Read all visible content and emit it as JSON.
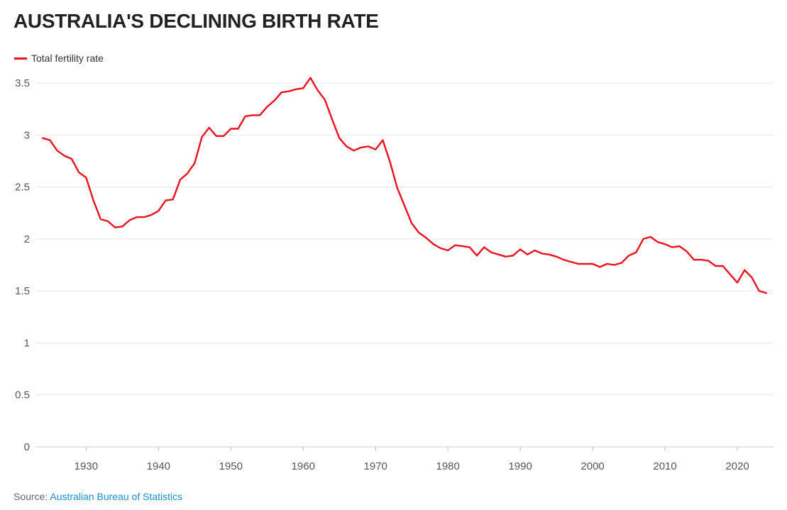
{
  "title": "AUSTRALIA'S DECLINING BIRTH RATE",
  "source": {
    "label": "Source:",
    "link_text": "Australian Bureau of Statistics"
  },
  "colors": {
    "series": "#e8131f",
    "grid": "#e6e6e6",
    "link": "#1a8fcf"
  },
  "chart_data": {
    "type": "line",
    "title": "AUSTRALIA'S DECLINING BIRTH RATE",
    "xlabel": "",
    "ylabel": "",
    "xlim": [
      1923,
      2025
    ],
    "ylim": [
      0,
      3.5
    ],
    "xticks": [
      1930,
      1940,
      1950,
      1960,
      1970,
      1980,
      1990,
      2000,
      2010,
      2020
    ],
    "yticks": [
      0,
      0.5,
      1,
      1.5,
      2,
      2.5,
      3,
      3.5
    ],
    "ytick_labels": [
      "0",
      "0.5",
      "1",
      "1.5",
      "2",
      "2.5",
      "3",
      "3.5"
    ],
    "grid": true,
    "legend_position": "top-left",
    "series": [
      {
        "name": "Total fertility rate",
        "x": [
          1924,
          1925,
          1926,
          1927,
          1928,
          1929,
          1930,
          1931,
          1932,
          1933,
          1934,
          1935,
          1936,
          1937,
          1938,
          1939,
          1940,
          1941,
          1942,
          1943,
          1944,
          1945,
          1946,
          1947,
          1948,
          1949,
          1950,
          1951,
          1952,
          1953,
          1954,
          1955,
          1956,
          1957,
          1958,
          1959,
          1960,
          1961,
          1962,
          1963,
          1964,
          1965,
          1966,
          1967,
          1968,
          1969,
          1970,
          1971,
          1972,
          1973,
          1974,
          1975,
          1976,
          1977,
          1978,
          1979,
          1980,
          1981,
          1982,
          1983,
          1984,
          1985,
          1986,
          1987,
          1988,
          1989,
          1990,
          1991,
          1992,
          1993,
          1994,
          1995,
          1996,
          1997,
          1998,
          1999,
          2000,
          2001,
          2002,
          2003,
          2004,
          2005,
          2006,
          2007,
          2008,
          2009,
          2010,
          2011,
          2012,
          2013,
          2014,
          2015,
          2016,
          2017,
          2018,
          2019,
          2020,
          2021,
          2022,
          2023,
          2024
        ],
        "values": [
          2.97,
          2.95,
          2.85,
          2.8,
          2.77,
          2.64,
          2.59,
          2.37,
          2.19,
          2.17,
          2.11,
          2.12,
          2.18,
          2.21,
          2.21,
          2.23,
          2.27,
          2.37,
          2.38,
          2.57,
          2.63,
          2.73,
          2.98,
          3.07,
          2.99,
          2.99,
          3.06,
          3.06,
          3.18,
          3.19,
          3.19,
          3.27,
          3.33,
          3.41,
          3.42,
          3.44,
          3.45,
          3.55,
          3.43,
          3.34,
          3.15,
          2.97,
          2.89,
          2.85,
          2.88,
          2.89,
          2.86,
          2.95,
          2.74,
          2.49,
          2.32,
          2.15,
          2.06,
          2.01,
          1.95,
          1.91,
          1.89,
          1.94,
          1.93,
          1.92,
          1.84,
          1.92,
          1.87,
          1.85,
          1.83,
          1.84,
          1.9,
          1.85,
          1.89,
          1.86,
          1.85,
          1.83,
          1.8,
          1.78,
          1.76,
          1.76,
          1.76,
          1.73,
          1.76,
          1.75,
          1.77,
          1.84,
          1.87,
          2.0,
          2.02,
          1.97,
          1.95,
          1.92,
          1.93,
          1.88,
          1.8,
          1.8,
          1.79,
          1.74,
          1.74,
          1.66,
          1.58,
          1.7,
          1.63,
          1.5,
          1.48
        ]
      }
    ]
  }
}
